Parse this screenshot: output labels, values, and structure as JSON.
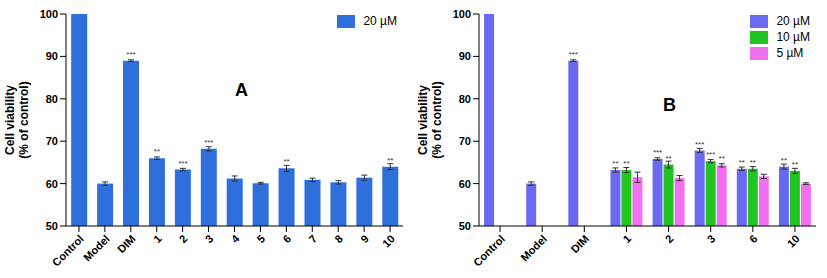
{
  "chart_data": [
    {
      "type": "bar",
      "title": "A",
      "y_label": "Cell viability\n(% of control)",
      "categories": [
        "Control",
        "Model",
        "DIM",
        "1",
        "2",
        "3",
        "4",
        "5",
        "6",
        "7",
        "8",
        "9",
        "10"
      ],
      "series": [
        {
          "name": "20 µM",
          "color": "#2f6fdc",
          "values": [
            100,
            60,
            89,
            66,
            63.3,
            68.2,
            61.2,
            60.1,
            63.6,
            60.9,
            60.3,
            61.4,
            64
          ],
          "errors": [
            0,
            0.4,
            0.2,
            0.3,
            0.3,
            0.5,
            0.6,
            0.2,
            0.7,
            0.4,
            0.4,
            0.6,
            0.7
          ],
          "significance": [
            null,
            null,
            "***",
            "**",
            "***",
            "***",
            null,
            null,
            "**",
            null,
            null,
            null,
            "**"
          ]
        }
      ],
      "ylim": [
        50,
        100
      ],
      "yticks": [
        50,
        60,
        70,
        80,
        90,
        100
      ],
      "grid": false,
      "legend": "upper right"
    },
    {
      "type": "bar",
      "title": "B",
      "y_label": "Cell viability\n(% of control)",
      "categories": [
        "Control",
        "Model",
        "DIM",
        "1",
        "2",
        "3",
        "6",
        "10"
      ],
      "series": [
        {
          "name": "20 µM",
          "color": "#6a6af0",
          "values": [
            100,
            60,
            89,
            63.2,
            65.8,
            67.8,
            63.5,
            64
          ],
          "errors": [
            0,
            0.4,
            0.2,
            0.5,
            0.3,
            0.5,
            0.4,
            0.6
          ],
          "significance": [
            null,
            null,
            "***",
            "**",
            "***",
            "***",
            "**",
            "**"
          ]
        },
        {
          "name": "10 µM",
          "color": "#22c422",
          "values": [
            null,
            null,
            null,
            63.2,
            64.5,
            65.3,
            63.5,
            63
          ],
          "errors": [
            null,
            null,
            null,
            0.6,
            0.8,
            0.4,
            0.5,
            0.6
          ],
          "significance": [
            null,
            null,
            null,
            "**",
            "**",
            "***",
            "**",
            "**"
          ]
        },
        {
          "name": "5 µM",
          "color": "#f070f0",
          "values": [
            null,
            null,
            null,
            61.5,
            61.3,
            64.3,
            61.7,
            60
          ],
          "errors": [
            null,
            null,
            null,
            1.2,
            0.6,
            0.4,
            0.5,
            0.2
          ],
          "significance": [
            null,
            null,
            null,
            null,
            null,
            "**",
            null,
            null
          ]
        }
      ],
      "ylim": [
        50,
        100
      ],
      "yticks": [
        50,
        60,
        70,
        80,
        90,
        100
      ],
      "grid": false,
      "legend": "upper right"
    }
  ]
}
